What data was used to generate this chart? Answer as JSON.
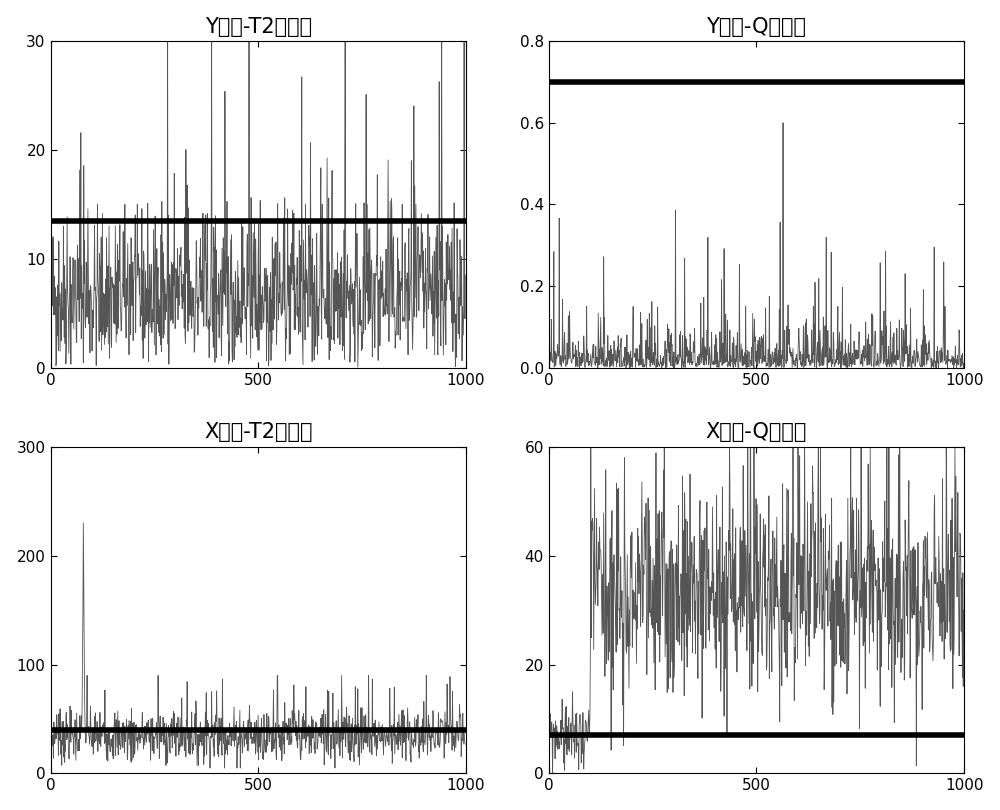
{
  "plots": [
    {
      "title": "Y预测-T2统计量",
      "threshold": 13.5,
      "ylim": [
        0,
        30
      ],
      "yticks": [
        0,
        10,
        20,
        30
      ],
      "xlim": [
        0,
        1000
      ],
      "xticks": [
        0,
        500,
        1000
      ],
      "seed": 42
    },
    {
      "title": "Y预测-Q统计量",
      "threshold": 0.7,
      "ylim": [
        0,
        0.8
      ],
      "yticks": [
        0,
        0.2,
        0.4,
        0.6,
        0.8
      ],
      "xlim": [
        0,
        1000
      ],
      "xticks": [
        0,
        500,
        1000
      ],
      "seed": 123
    },
    {
      "title": "X残差-T2统计量",
      "threshold": 40,
      "ylim": [
        0,
        300
      ],
      "yticks": [
        0,
        100,
        200,
        300
      ],
      "xlim": [
        0,
        1000
      ],
      "xticks": [
        0,
        500,
        1000
      ],
      "seed": 7
    },
    {
      "title": "X残差-Q统计量",
      "threshold": 7,
      "ylim": [
        0,
        60
      ],
      "yticks": [
        0,
        20,
        40,
        60
      ],
      "xlim": [
        0,
        1000
      ],
      "xticks": [
        0,
        500,
        1000
      ],
      "seed": 99
    }
  ],
  "n_points": 1000,
  "line_color": "#555555",
  "threshold_color": "#000000",
  "threshold_lw": 4.0,
  "signal_lw": 0.6,
  "background_color": "#ffffff",
  "title_fontsize": 15,
  "tick_fontsize": 11
}
